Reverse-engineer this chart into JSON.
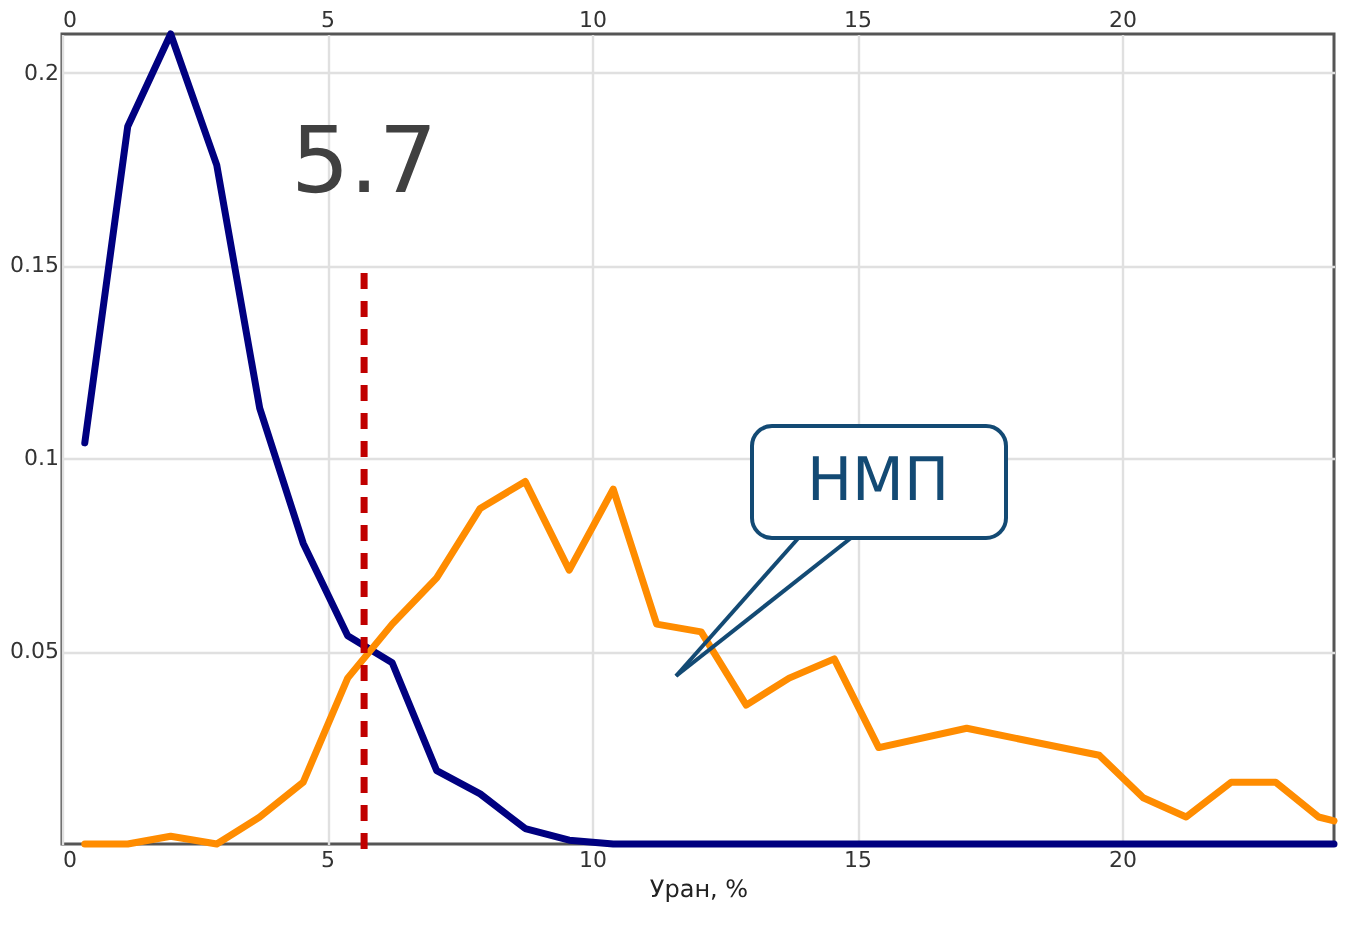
{
  "chart_data": {
    "type": "line",
    "xlabel": "Уран, %",
    "xlim": [
      0,
      24
    ],
    "xticks": [
      0,
      5,
      10,
      15,
      20
    ],
    "x2lim": [
      0,
      24
    ],
    "x2ticks": [
      0,
      5,
      10,
      15,
      20
    ],
    "ylim": [
      0,
      0.21
    ],
    "yticks": [
      0.05,
      0.1,
      0.15,
      0.2
    ],
    "grid": true,
    "marker": "none",
    "line_style": "solid",
    "series": [
      {
        "color": "#000080",
        "x": [
          0.43,
          1.24,
          2.05,
          2.92,
          3.73,
          4.55,
          5.39,
          6.23,
          7.07,
          7.89,
          8.74,
          9.57,
          10.4,
          12.0,
          16.0,
          20.0,
          24.0
        ],
        "values": [
          0.104,
          0.186,
          0.21,
          0.176,
          0.113,
          0.078,
          0.054,
          0.047,
          0.019,
          0.013,
          0.004,
          0.001,
          0.0,
          0.0,
          0.0,
          0.0,
          0.0
        ]
      },
      {
        "color": "#ff8c00",
        "x": [
          0.43,
          1.24,
          2.05,
          2.92,
          3.73,
          4.55,
          5.39,
          6.23,
          7.07,
          7.89,
          8.74,
          9.57,
          10.4,
          11.22,
          12.06,
          12.91,
          13.72,
          14.57,
          15.41,
          17.07,
          19.57,
          20.4,
          21.21,
          22.06,
          22.9,
          23.71,
          24.0
        ],
        "values": [
          0.0,
          0.0,
          0.002,
          0.0,
          0.007,
          0.016,
          0.043,
          0.057,
          0.069,
          0.087,
          0.094,
          0.071,
          0.092,
          0.057,
          0.055,
          0.036,
          0.043,
          0.048,
          0.025,
          0.03,
          0.023,
          0.012,
          0.007,
          0.016,
          0.016,
          0.007,
          0.006
        ]
      }
    ],
    "ref_lines": [
      {
        "axis": "x",
        "value": 5.7,
        "label": "5.7",
        "color": "#c00000",
        "line_style": "dashed"
      }
    ],
    "annotations": [
      "НМП"
    ]
  }
}
